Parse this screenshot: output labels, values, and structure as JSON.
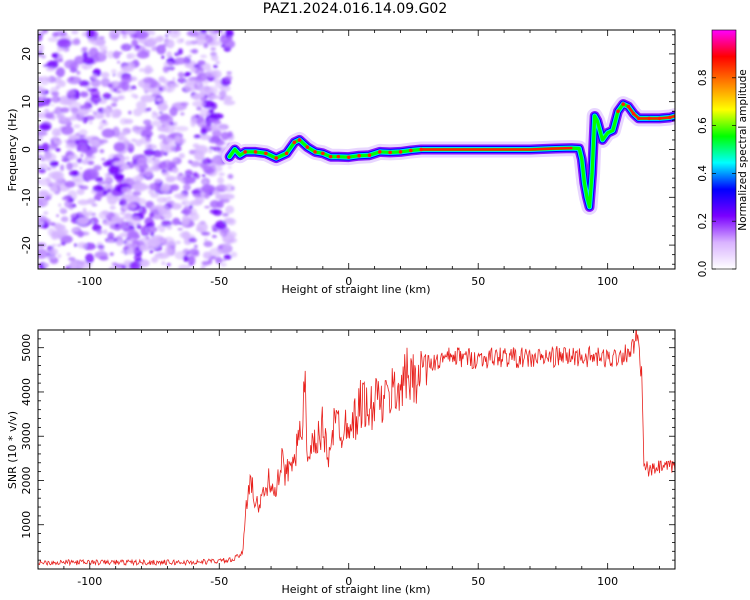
{
  "title": "PAZ1.2024.016.14.09.G02",
  "colors": {
    "snr_line": "#e8211d",
    "spectrogram_noise": "#7a00ff",
    "axis": "#000000"
  },
  "colormap": [
    "#ffffff",
    "#d9b3ff",
    "#7a00ff",
    "#0000ff",
    "#00ffff",
    "#00ff00",
    "#ffff00",
    "#ff8000",
    "#ff0000",
    "#ff00ff"
  ],
  "chart_data": [
    {
      "type": "heatmap",
      "xlabel": "Height of straight line (km)",
      "ylabel": "Frequency (Hz)",
      "xlim": [
        -120,
        126
      ],
      "ylim": [
        -25,
        25
      ],
      "x_ticks": [
        -100,
        -50,
        0,
        50,
        100
      ],
      "y_ticks": [
        -20,
        -10,
        0,
        10,
        20
      ],
      "x_tick_labels": [
        "-100",
        "-50",
        "0",
        "50",
        "100"
      ],
      "y_tick_labels": [
        "-20",
        "-10",
        "0",
        "10",
        "20"
      ],
      "noise_region_x": [
        -120,
        -45
      ],
      "ridge": {
        "x": [
          -46,
          -44,
          -42,
          -40,
          -36,
          -32,
          -28,
          -24,
          -21,
          -19,
          -16,
          -13,
          -10,
          -7,
          -4,
          0,
          4,
          8,
          12,
          16,
          20,
          24,
          28,
          30,
          40,
          50,
          60,
          70,
          80,
          86,
          89,
          90,
          91,
          92,
          93,
          94,
          95,
          96,
          98,
          100,
          102,
          104,
          106,
          108,
          110,
          112,
          116,
          120,
          124,
          126
        ],
        "y": [
          -1.5,
          0,
          -1.2,
          -0.5,
          -0.5,
          -0.8,
          -1.8,
          -0.8,
          1.5,
          2,
          0.5,
          -0.5,
          -0.8,
          -1.5,
          -1.5,
          -1.6,
          -1.3,
          -1.2,
          -0.5,
          -0.6,
          -0.5,
          -0.2,
          0,
          0,
          0,
          0,
          0,
          0,
          0.2,
          0.3,
          0.2,
          -2,
          -7,
          -10,
          -12,
          -5,
          7,
          6,
          2,
          3.5,
          4,
          8,
          9.5,
          9,
          7.5,
          6.5,
          6.5,
          6.5,
          6.7,
          7
        ]
      },
      "colorbar": {
        "label": "Normalized spectral amplitude",
        "range": [
          0,
          1
        ],
        "ticks": [
          0.0,
          0.2,
          0.4,
          0.6,
          0.8
        ],
        "tick_labels": [
          "0.0",
          "0.2",
          "0.4",
          "0.6",
          "0.8"
        ]
      }
    },
    {
      "type": "line",
      "xlabel": "Height of straight line (km)",
      "ylabel": "SNR (10 * v/v)",
      "xlim": [
        -120,
        126
      ],
      "ylim": [
        0,
        5400
      ],
      "x_ticks": [
        -100,
        -50,
        0,
        50,
        100
      ],
      "y_ticks": [
        1000,
        2000,
        3000,
        4000,
        5000
      ],
      "x_tick_labels": [
        "-100",
        "-50",
        "0",
        "50",
        "100"
      ],
      "y_tick_labels": [
        "1000",
        "2000",
        "3000",
        "4000",
        "5000"
      ],
      "series": [
        {
          "x": [
            -120,
            -100,
            -80,
            -60,
            -45,
            -41,
            -40,
            -38,
            -36,
            -34,
            -32,
            -30,
            -28,
            -26,
            -24,
            -22,
            -20,
            -18,
            -17,
            -16,
            -14,
            -12,
            -10,
            -8,
            -6,
            -4,
            -2,
            0,
            2,
            4,
            6,
            8,
            10,
            12,
            14,
            16,
            18,
            20,
            22,
            25,
            28,
            30,
            35,
            40,
            50,
            60,
            70,
            80,
            90,
            100,
            106,
            110,
            111,
            112,
            113,
            114,
            115,
            116,
            120,
            126
          ],
          "y": [
            150,
            150,
            150,
            150,
            200,
            350,
            1200,
            2200,
            1400,
            1500,
            1800,
            2100,
            1700,
            2400,
            2100,
            2600,
            2800,
            3000,
            4500,
            2200,
            2700,
            2900,
            3200,
            2600,
            3200,
            3300,
            3100,
            3500,
            3300,
            3700,
            3800,
            3400,
            3900,
            3800,
            3700,
            4000,
            4000,
            4200,
            4300,
            4400,
            4500,
            4600,
            4700,
            4800,
            4750,
            4800,
            4750,
            4800,
            4800,
            4750,
            4850,
            5000,
            5300,
            4900,
            4600,
            2300,
            2300,
            2200,
            2300,
            2300
          ]
        }
      ]
    }
  ]
}
